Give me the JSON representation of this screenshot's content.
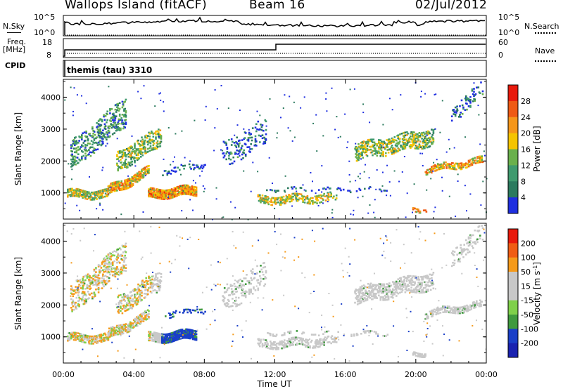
{
  "header": {
    "site": "Wallops Island (fitACF)",
    "beam": "Beam 16",
    "date": "02/Jul/2012"
  },
  "left_labels": {
    "nsky": "N.Sky",
    "freq": "Freq.",
    "freq_unit": "[MHz]",
    "cpid": "CPID"
  },
  "right_labels": {
    "nsearch": "N.Search",
    "nave": "Nave"
  },
  "noise_axis": {
    "left_ticks": [
      "10^5",
      "10^0"
    ],
    "right_ticks": [
      "10^5",
      "10^0"
    ]
  },
  "freq_axis": {
    "left_ticks": [
      "18",
      "8"
    ],
    "right_ticks": [
      "60",
      "0"
    ]
  },
  "cpid_text": "themis (tau) 3310",
  "colors": {
    "power_scale": [
      "#1f2fe0",
      "#2b7a5e",
      "#3f9a6e",
      "#6ab04c",
      "#f5c400",
      "#f5961a",
      "#ee5a14",
      "#e81a0c"
    ],
    "velocity_scale": [
      "#e81a0c",
      "#f05d14",
      "#f59a1a",
      "#c8c8c8",
      "#c8c8c8",
      "#7fd04a",
      "#3f9a3e",
      "#1a3fc8",
      "#1a22b0"
    ]
  },
  "chart_data": [
    {
      "type": "heatmap",
      "title": "",
      "xlabel": "Time UT",
      "ylabel": "Slant Range [km]",
      "x_ticks": [
        "00:00",
        "04:00",
        "08:00",
        "12:00",
        "16:00",
        "20:00",
        "00:00"
      ],
      "y_ticks": [
        "1000",
        "2000",
        "3000",
        "4000"
      ],
      "xlim_hours": [
        0,
        24
      ],
      "ylim_km": [
        180,
        4560
      ],
      "colorbar": {
        "label": "Power [dB]",
        "ticks": [
          "4",
          "8",
          "12",
          "16",
          "20",
          "24",
          "28"
        ],
        "range": [
          0,
          30
        ]
      },
      "grid": false
    },
    {
      "type": "heatmap",
      "title": "",
      "xlabel": "Time UT",
      "ylabel": "Slant Range [km]",
      "x_ticks": [
        "00:00",
        "04:00",
        "08:00",
        "12:00",
        "16:00",
        "20:00",
        "00:00"
      ],
      "y_ticks": [
        "1000",
        "2000",
        "3000",
        "4000"
      ],
      "xlim_hours": [
        0,
        24
      ],
      "ylim_km": [
        180,
        4560
      ],
      "colorbar": {
        "label": "Velocity [m s-1]",
        "ticks": [
          "200",
          "100",
          "50",
          "15",
          "-15",
          "-50",
          "-100",
          "-200"
        ],
        "range": [
          -250,
          250
        ]
      },
      "grid": false
    }
  ],
  "time_axis_label": "Time UT"
}
